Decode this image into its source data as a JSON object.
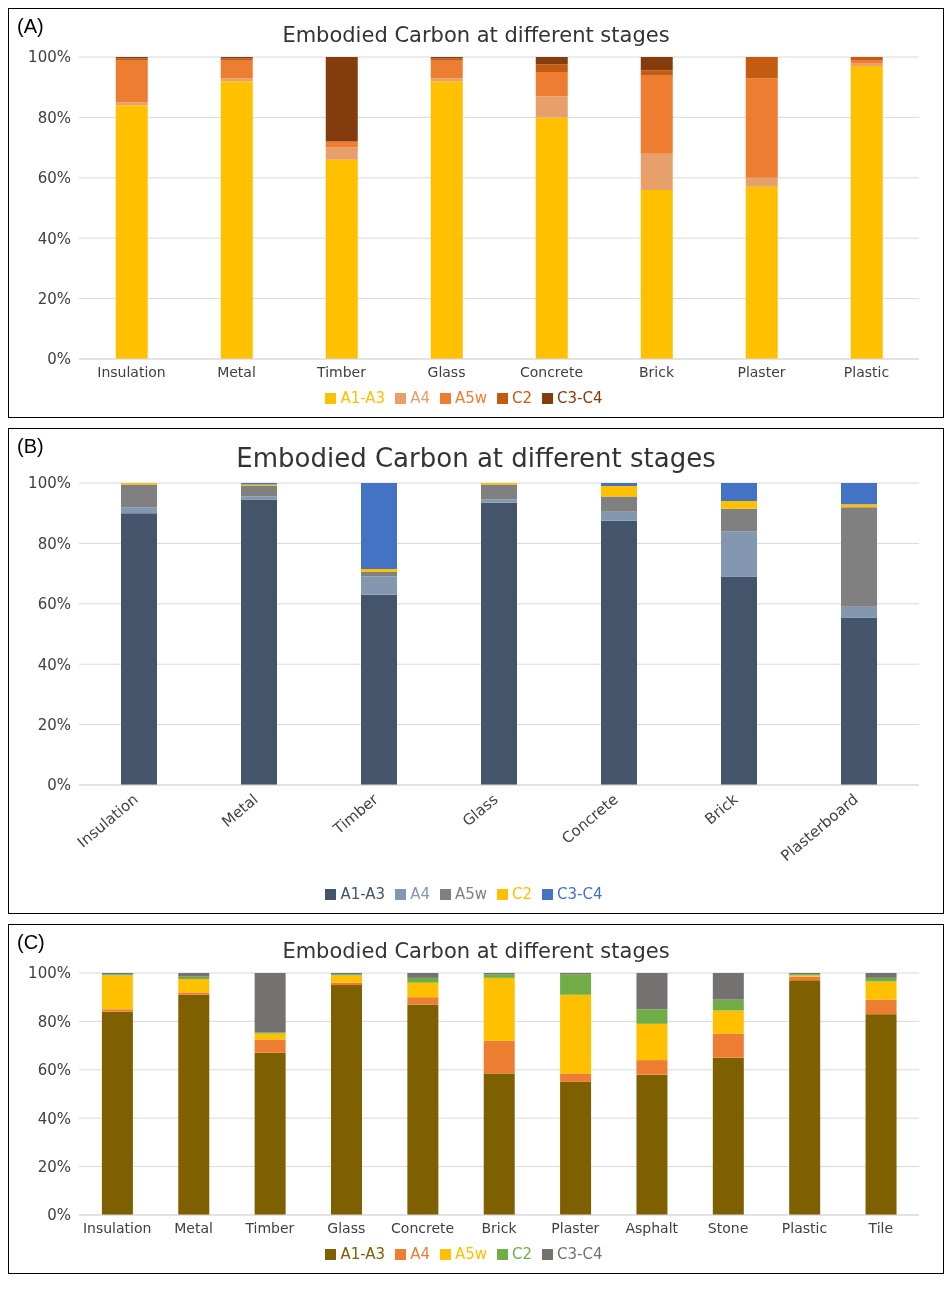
{
  "chart_data": [
    {
      "type": "bar",
      "title": "Embodied Carbon at different stages",
      "annotations": [
        "(A)"
      ],
      "stacked": true,
      "categories": [
        "Insulation",
        "Metal",
        "Timber",
        "Glass",
        "Concrete",
        "Brick",
        "Plaster",
        "Plastic"
      ],
      "series": [
        {
          "name": "A1-A3",
          "color": "#ffc000",
          "values": [
            84,
            92,
            66,
            92,
            80,
            56,
            57,
            97
          ]
        },
        {
          "name": "A4",
          "color": "#e8a06a",
          "values": [
            1,
            1,
            4,
            1,
            7,
            12,
            3,
            1
          ]
        },
        {
          "name": "A5w",
          "color": "#ed7d31",
          "values": [
            14,
            6,
            2,
            6,
            8,
            26,
            33,
            1
          ]
        },
        {
          "name": "C2",
          "color": "#c55a11",
          "values": [
            0.5,
            0.5,
            0,
            0.5,
            2.5,
            1.5,
            7,
            1
          ]
        },
        {
          "name": "C3-C4",
          "color": "#843c0c",
          "values": [
            0.5,
            0.5,
            28,
            0.5,
            2.5,
            4.5,
            0,
            0
          ]
        }
      ],
      "ylim": [
        0,
        100
      ],
      "yticks": [
        {
          "value": 0,
          "label": "0%"
        },
        {
          "value": 20,
          "label": "20%"
        },
        {
          "value": 40,
          "label": "40%"
        },
        {
          "value": 60,
          "label": "60%"
        },
        {
          "value": 80,
          "label": "80%"
        },
        {
          "value": 100,
          "label": "100%"
        }
      ],
      "grid": "y",
      "legend": "bottom"
    },
    {
      "type": "bar",
      "title": "Embodied Carbon at different stages",
      "annotations": [
        "(B)"
      ],
      "stacked": true,
      "categories": [
        "Insulation",
        "Metal",
        "Timber",
        "Glass",
        "Concrete",
        "Brick",
        "Plasterboard"
      ],
      "series": [
        {
          "name": "A1-A3",
          "color": "#44546a",
          "values": [
            90,
            94.5,
            63,
            93.5,
            87.5,
            69,
            55.5
          ]
        },
        {
          "name": "A4",
          "color": "#8497b0",
          "values": [
            2,
            1,
            6,
            1,
            3,
            15,
            3.5
          ]
        },
        {
          "name": "A5w",
          "color": "#808080",
          "values": [
            7.5,
            3.5,
            1.5,
            5,
            5,
            7.5,
            33
          ]
        },
        {
          "name": "C2",
          "color": "#ffc000",
          "values": [
            0.5,
            0.5,
            1,
            0.5,
            3.5,
            2.5,
            1
          ]
        },
        {
          "name": "C3-C4",
          "color": "#4472c4",
          "values": [
            0,
            0.5,
            28.5,
            0,
            1,
            6,
            7
          ]
        }
      ],
      "ylim": [
        0,
        100
      ],
      "yticks": [
        {
          "value": 0,
          "label": "0%"
        },
        {
          "value": 20,
          "label": "20%"
        },
        {
          "value": 40,
          "label": "40%"
        },
        {
          "value": 60,
          "label": "60%"
        },
        {
          "value": 80,
          "label": "80%"
        },
        {
          "value": 100,
          "label": "100%"
        }
      ],
      "grid": "y",
      "legend": "bottom"
    },
    {
      "type": "bar",
      "title": "Embodied Carbon at different stages",
      "annotations": [
        "(C)"
      ],
      "stacked": true,
      "categories": [
        "Insulation",
        "Metal",
        "Timber",
        "Glass",
        "Concrete",
        "Brick",
        "Plaster",
        "Asphalt",
        "Stone",
        "Plastic",
        "Tile"
      ],
      "series": [
        {
          "name": "A1-A3",
          "color": "#7f6000",
          "values": [
            84,
            91,
            67,
            95,
            87,
            58.5,
            55,
            58,
            65,
            97,
            83
          ]
        },
        {
          "name": "A4",
          "color": "#ed7d31",
          "values": [
            1,
            1,
            5.5,
            1,
            3,
            13.5,
            3.5,
            6,
            10,
            1.5,
            6
          ]
        },
        {
          "name": "A5w",
          "color": "#ffc000",
          "values": [
            14,
            5.5,
            2.5,
            3,
            6,
            26,
            32.5,
            15,
            9.5,
            0.5,
            7.5
          ]
        },
        {
          "name": "C2",
          "color": "#70ad47",
          "values": [
            0.5,
            1,
            0.5,
            0.5,
            2,
            1.5,
            8.5,
            6,
            4.5,
            0.5,
            1.5
          ]
        },
        {
          "name": "C3-C4",
          "color": "#767171",
          "values": [
            0.5,
            1.5,
            24.5,
            0.5,
            2,
            0.5,
            0.5,
            15,
            11,
            0.5,
            2
          ]
        }
      ],
      "ylim": [
        0,
        100
      ],
      "yticks": [
        {
          "value": 0,
          "label": "0%"
        },
        {
          "value": 20,
          "label": "20%"
        },
        {
          "value": 40,
          "label": "40%"
        },
        {
          "value": 60,
          "label": "60%"
        },
        {
          "value": 80,
          "label": "80%"
        },
        {
          "value": 100,
          "label": "100%"
        }
      ],
      "grid": "y",
      "legend": "bottom"
    }
  ]
}
